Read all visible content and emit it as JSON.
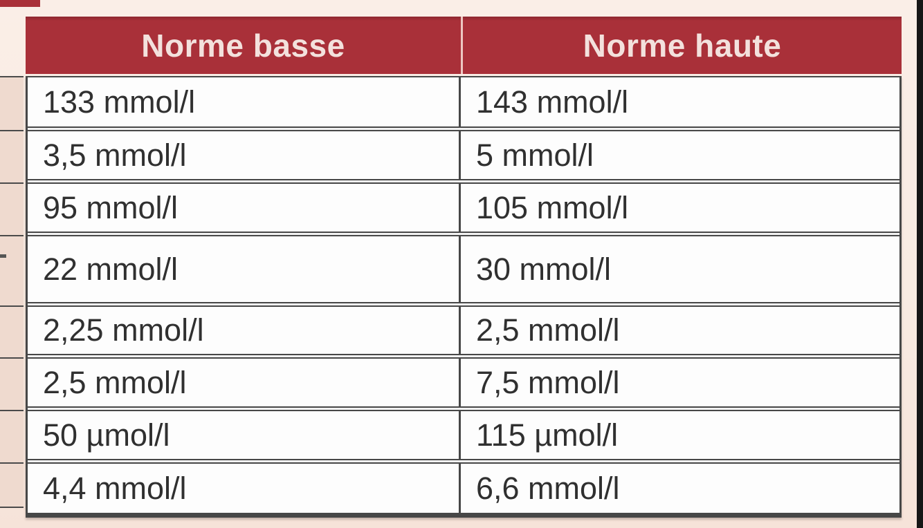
{
  "table": {
    "columns": [
      {
        "label": "Norme basse"
      },
      {
        "label": "Norme haute"
      }
    ],
    "rows": [
      {
        "low": "133 mmol/l",
        "high": "143 mmol/l"
      },
      {
        "low": "3,5 mmol/l",
        "high": "5 mmol/l"
      },
      {
        "low": "95 mmol/l",
        "high": "105 mmol/l"
      },
      {
        "low": "22 mmol/l",
        "high": "30 mmol/l"
      },
      {
        "low": "2,25 mmol/l",
        "high": "2,5 mmol/l"
      },
      {
        "low": "2,5 mmol/l",
        "high": "7,5 mmol/l"
      },
      {
        "low": "50 µmol/l",
        "high": "115 µmol/l"
      },
      {
        "low": "4,4 mmol/l",
        "high": "6,6 mmol/l"
      }
    ]
  },
  "colors": {
    "header_red": "#a93039",
    "header_red_dark": "#8d272f",
    "header_text": "#f3e1dd",
    "page_bg": "#f8ece4",
    "fragment_cell_bg": "#efdacf",
    "border_dark": "#474747",
    "cell_bg": "#fdfdfd",
    "body_text": "#303030",
    "right_strip": "#161616",
    "header_divider": "#eec7c2"
  }
}
